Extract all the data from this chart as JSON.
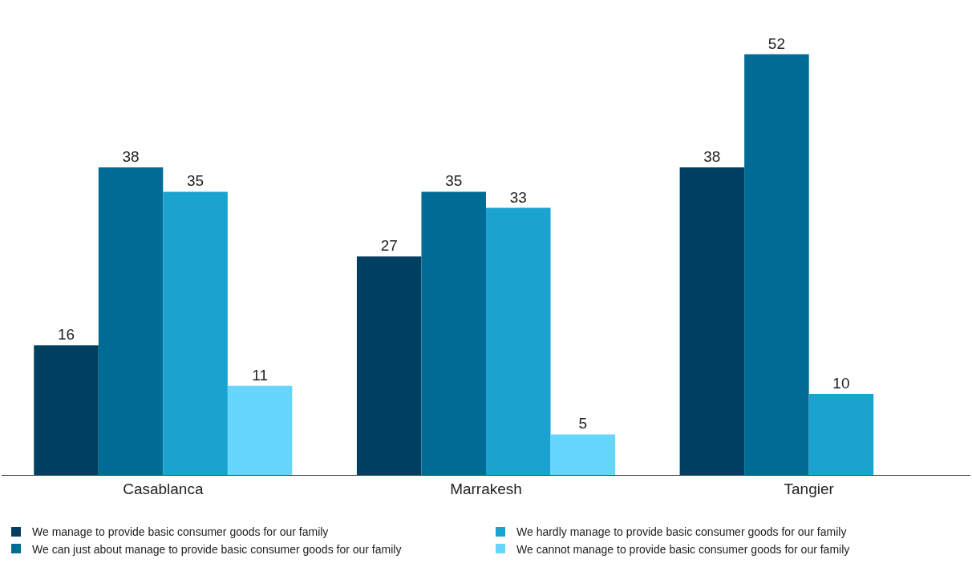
{
  "chart_data": {
    "type": "bar",
    "categories": [
      "Casablanca",
      "Marrakesh",
      "Tangier"
    ],
    "series": [
      {
        "name": "We manage to provide basic consumer goods for our family",
        "color": "#003f5f",
        "values": [
          16,
          27,
          38
        ]
      },
      {
        "name": "We can just about manage to provide basic consumer goods for our family",
        "color": "#006c95",
        "values": [
          38,
          35,
          52
        ]
      },
      {
        "name": "We hardly manage to provide basic consumer goods for our family",
        "color": "#1aa2d0",
        "values": [
          35,
          33,
          10
        ]
      },
      {
        "name": "We cannot manage to provide basic consumer goods for our family",
        "color": "#66d6fe",
        "values": [
          11,
          5,
          null
        ]
      }
    ],
    "data_labels": true,
    "legend": "bottom",
    "tick_labels": "x"
  }
}
